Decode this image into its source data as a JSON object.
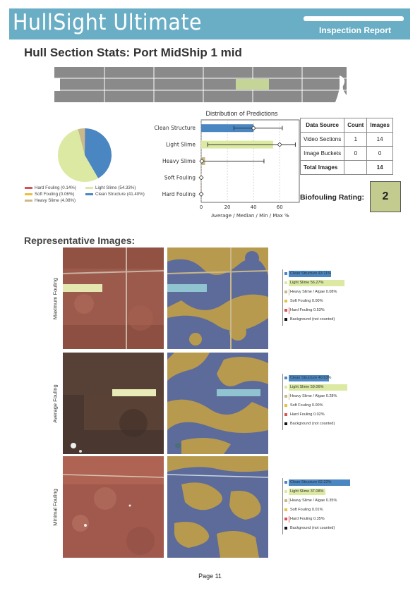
{
  "header": {
    "brand": "HullSight Ultimate",
    "report_label": "Inspection Report",
    "colors": {
      "band": "#6aaec5",
      "text": "#ffffff"
    }
  },
  "section_title": "Hull Section Stats: Port MidShip 1 mid",
  "categories": [
    {
      "name": "Clean Structure",
      "color": "#4a86c1"
    },
    {
      "name": "Light Slime",
      "color": "#dbe9a2"
    },
    {
      "name": "Heavy Slime",
      "color": "#c9b98a"
    },
    {
      "name": "Soft Fouling",
      "color": "#e8c040"
    },
    {
      "name": "Hard Fouling",
      "color": "#d95050"
    }
  ],
  "pie_legend": [
    "Hard Fouling (0.14%)",
    "Light Slime (54.33%)",
    "Soft Fouling (0.06%)",
    "Clean Structure (41.40%)",
    "Heavy Slime (4.08%)"
  ],
  "chart_data": [
    {
      "type": "pie",
      "categories": [
        "Hard Fouling",
        "Light Slime",
        "Soft Fouling",
        "Clean Structure",
        "Heavy Slime"
      ],
      "values": [
        0.14,
        54.33,
        0.06,
        41.4,
        4.08
      ]
    },
    {
      "type": "bar",
      "title": "Distribution of Predictions",
      "xlabel": "Average / Median / Min / Max %",
      "categories": [
        "Clean Structure",
        "Light Slime",
        "Heavy Slime",
        "Soft Fouling",
        "Hard Fouling"
      ],
      "series": [
        {
          "name": "Average",
          "values": [
            40,
            55,
            3,
            0.1,
            0.1
          ]
        },
        {
          "name": "Median",
          "values": [
            40,
            60,
            0.5,
            0,
            0
          ]
        },
        {
          "name": "Min",
          "values": [
            25,
            5,
            0,
            0,
            0
          ]
        },
        {
          "name": "Max",
          "values": [
            62,
            72,
            48,
            0.3,
            0.3
          ]
        }
      ],
      "xlim": [
        0,
        75
      ],
      "xticks": [
        "0",
        "20",
        "40",
        "60"
      ],
      "grid": true
    }
  ],
  "table": {
    "headers": [
      "Data Source",
      "Count",
      "Images"
    ],
    "rows": [
      [
        "Video Sections",
        "1",
        "14"
      ],
      [
        "Image Buckets",
        "0",
        "0"
      ],
      [
        "Total Images",
        "",
        "14"
      ]
    ]
  },
  "rating": {
    "label": "Biofouling Rating:",
    "value": "2"
  },
  "rep_title": "Representative Images:",
  "rep_rows": [
    {
      "label": "Maximum Fouling",
      "bars": [
        {
          "text": "Clean Structure 43.11%",
          "pct": 43.11
        },
        {
          "text": "Light Slime 56.27%",
          "pct": 56.27
        },
        {
          "text": "Heavy Slime / Algae 0.08%",
          "pct": 0.08
        },
        {
          "text": "Soft Fouling 0.00%",
          "pct": 0.0
        },
        {
          "text": "Hard Fouling 0.53%",
          "pct": 0.53
        },
        {
          "text": "Background (not counted)",
          "pct": 0
        }
      ]
    },
    {
      "label": "Average Fouling",
      "bars": [
        {
          "text": "Clean Structure 40.63%",
          "pct": 40.63
        },
        {
          "text": "Light Slime 59.06%",
          "pct": 59.06
        },
        {
          "text": "Heavy Slime / Algae 0.28%",
          "pct": 0.28
        },
        {
          "text": "Soft Fouling 0.00%",
          "pct": 0.0
        },
        {
          "text": "Hard Fouling 0.02%",
          "pct": 0.02
        },
        {
          "text": "Background (not counted)",
          "pct": 0
        }
      ]
    },
    {
      "label": "Minimal Fouling",
      "bars": [
        {
          "text": "Clean Structure 62.22%",
          "pct": 62.22
        },
        {
          "text": "Light Slime 37.08%",
          "pct": 37.08
        },
        {
          "text": "Heavy Slime / Algae 0.35%",
          "pct": 0.35
        },
        {
          "text": "Soft Fouling 0.01%",
          "pct": 0.01
        },
        {
          "text": "Hard Fouling 0.35%",
          "pct": 0.35
        },
        {
          "text": "Background (not counted)",
          "pct": 0
        }
      ]
    }
  ],
  "bar_colors": [
    "#4a86c1",
    "#dbe9a2",
    "#c9b98a",
    "#e8c040",
    "#d95050",
    "#111111"
  ],
  "page_label": "Page 11"
}
